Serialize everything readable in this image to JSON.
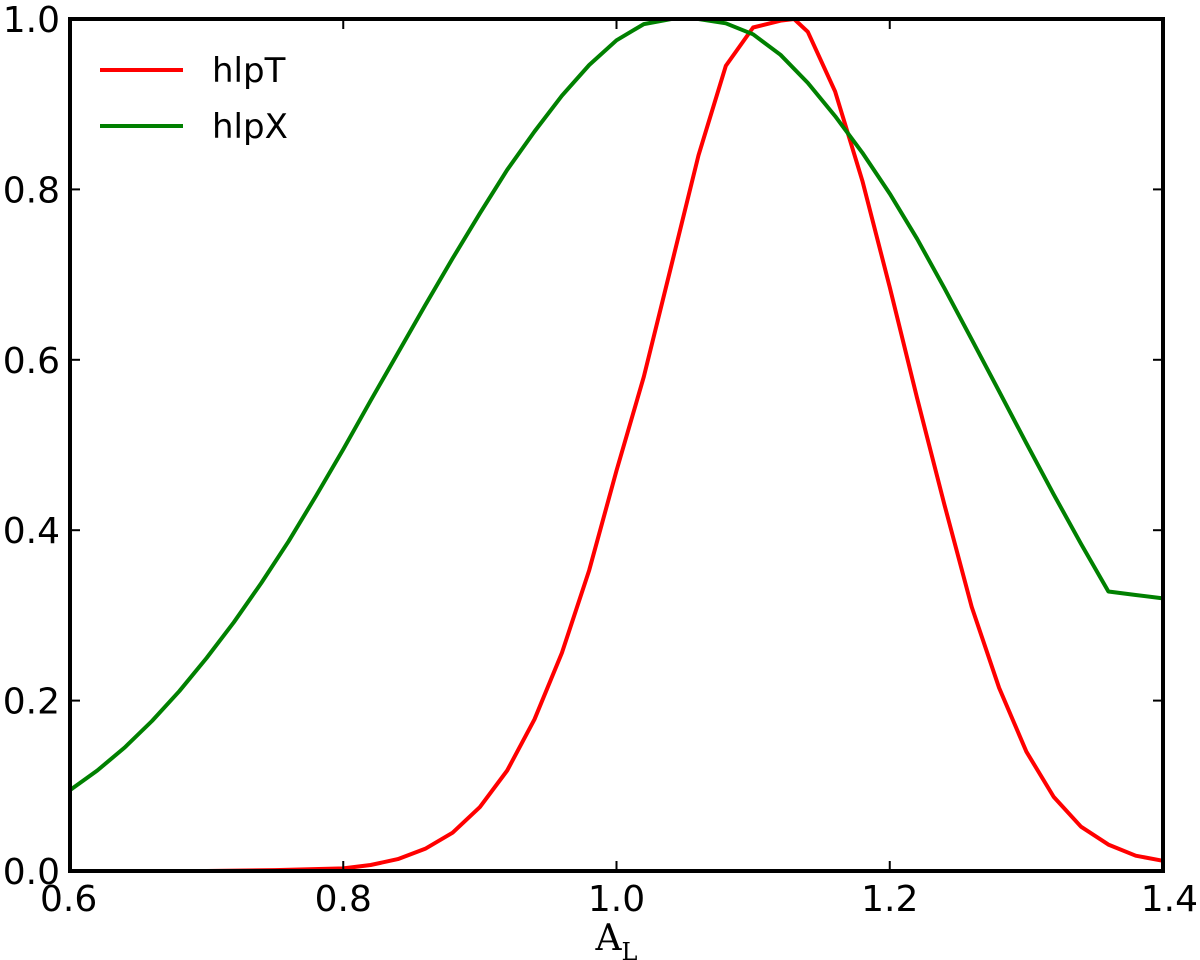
{
  "chart_data": {
    "type": "line",
    "title": "",
    "xlabel": "A",
    "xlabel_subscript": "L",
    "ylabel": "",
    "xlim": [
      0.6,
      1.4
    ],
    "ylim": [
      0.0,
      1.0
    ],
    "x_ticks": [
      0.6,
      0.8,
      1.0,
      1.2,
      1.4
    ],
    "x_tick_labels": [
      "0.6",
      "0.8",
      "1.0",
      "1.2",
      "1.4"
    ],
    "y_ticks": [
      0.0,
      0.2,
      0.4,
      0.6,
      0.8,
      1.0
    ],
    "y_tick_labels": [
      "0.0",
      "0.2",
      "0.4",
      "0.6",
      "0.8",
      "1.0"
    ],
    "grid": false,
    "legend_position": "top-left",
    "series": [
      {
        "name": "hlpT",
        "color": "#ff0000",
        "x": [
          0.6,
          0.65,
          0.7,
          0.75,
          0.8,
          0.82,
          0.84,
          0.86,
          0.88,
          0.9,
          0.92,
          0.94,
          0.96,
          0.98,
          1.0,
          1.02,
          1.04,
          1.06,
          1.08,
          1.1,
          1.12,
          1.13,
          1.14,
          1.16,
          1.18,
          1.2,
          1.22,
          1.24,
          1.26,
          1.28,
          1.3,
          1.32,
          1.34,
          1.36,
          1.38,
          1.4
        ],
        "y": [
          0.0,
          0.0,
          0.0,
          0.001,
          0.003,
          0.007,
          0.014,
          0.026,
          0.045,
          0.075,
          0.118,
          0.178,
          0.256,
          0.353,
          0.47,
          0.58,
          0.71,
          0.84,
          0.945,
          0.99,
          0.998,
          1.0,
          0.985,
          0.915,
          0.81,
          0.685,
          0.555,
          0.43,
          0.31,
          0.215,
          0.14,
          0.087,
          0.052,
          0.031,
          0.018,
          0.012
        ]
      },
      {
        "name": "hlpX",
        "color": "#008000",
        "x": [
          0.6,
          0.62,
          0.64,
          0.66,
          0.68,
          0.7,
          0.72,
          0.74,
          0.76,
          0.78,
          0.8,
          0.82,
          0.84,
          0.86,
          0.88,
          0.9,
          0.92,
          0.94,
          0.96,
          0.98,
          1.0,
          1.02,
          1.04,
          1.06,
          1.08,
          1.1,
          1.12,
          1.14,
          1.16,
          1.18,
          1.2,
          1.22,
          1.24,
          1.26,
          1.28,
          1.3,
          1.32,
          1.34,
          1.36,
          1.38,
          1.4
        ],
        "y": [
          0.095,
          0.118,
          0.145,
          0.176,
          0.211,
          0.25,
          0.292,
          0.338,
          0.387,
          0.44,
          0.495,
          0.552,
          0.608,
          0.664,
          0.719,
          0.772,
          0.823,
          0.868,
          0.91,
          0.946,
          0.975,
          0.994,
          1.0,
          1.0,
          0.995,
          0.982,
          0.958,
          0.925,
          0.886,
          0.843,
          0.795,
          0.742,
          0.684,
          0.624,
          0.563,
          0.502,
          0.442,
          0.384,
          0.328,
          0.324,
          0.32
        ]
      }
    ]
  }
}
